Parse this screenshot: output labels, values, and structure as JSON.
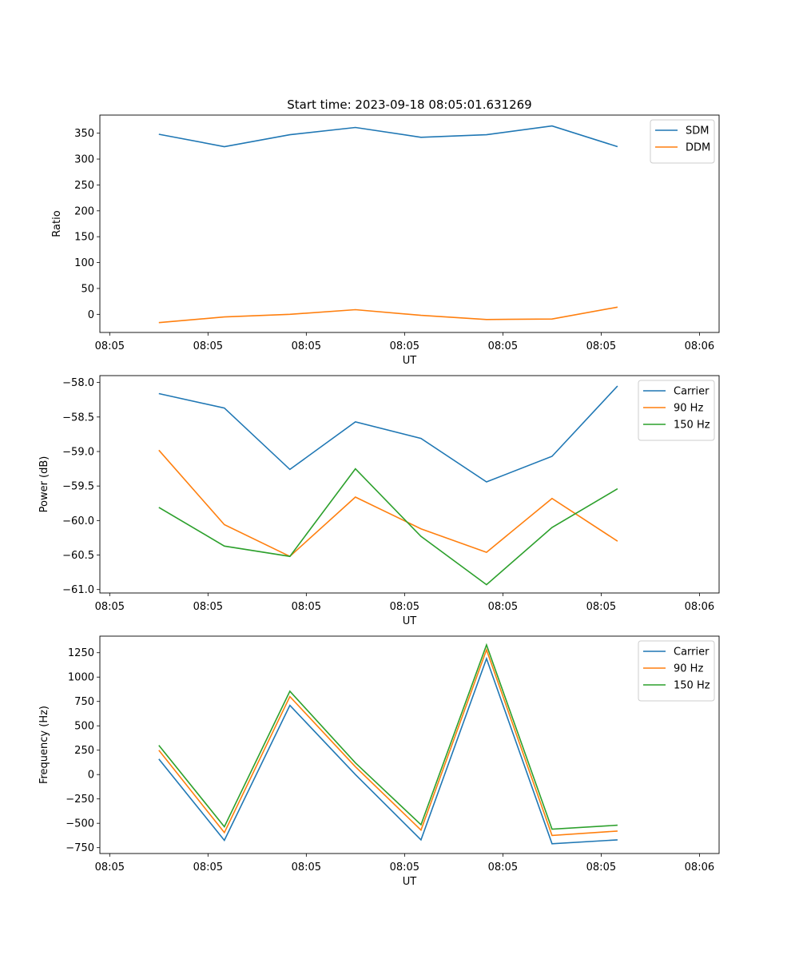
{
  "chart_data": [
    {
      "type": "line",
      "title": "Start time: 2023-09-18 08:05:01.631269",
      "xlabel": "UT",
      "ylabel": "Ratio",
      "ylim": [
        -35,
        385
      ],
      "yticks": [
        0,
        50,
        100,
        150,
        200,
        250,
        300,
        350
      ],
      "xtick_labels": [
        "08:05",
        "08:05",
        "08:05",
        "08:05",
        "08:05",
        "08:05",
        "08:06"
      ],
      "legend": "top-right",
      "grid": false,
      "series": [
        {
          "name": "SDM",
          "color": "#1f77b4",
          "values": [
            348,
            324,
            347,
            361,
            342,
            347,
            364,
            324
          ]
        },
        {
          "name": "DDM",
          "color": "#ff7f0e",
          "values": [
            -16,
            -5,
            0,
            9,
            -2,
            -10,
            -9,
            14
          ]
        }
      ]
    },
    {
      "type": "line",
      "title": "",
      "xlabel": "UT",
      "ylabel": "Power (dB)",
      "ylim": [
        -61.05,
        -57.9
      ],
      "yticks": [
        -58.0,
        -58.5,
        -59.0,
        -59.5,
        -60.0,
        -60.5,
        -61.0
      ],
      "xtick_labels": [
        "08:05",
        "08:05",
        "08:05",
        "08:05",
        "08:05",
        "08:05",
        "08:06"
      ],
      "legend": "top-right",
      "grid": false,
      "series": [
        {
          "name": "Carrier",
          "color": "#1f77b4",
          "values": [
            -58.16,
            -58.37,
            -59.26,
            -58.57,
            -58.81,
            -59.44,
            -59.07,
            -58.05
          ]
        },
        {
          "name": "90 Hz",
          "color": "#ff7f0e",
          "values": [
            -58.98,
            -60.06,
            -60.52,
            -59.66,
            -60.12,
            -60.46,
            -59.68,
            -60.3
          ]
        },
        {
          "name": "150 Hz",
          "color": "#2ca02c",
          "values": [
            -59.81,
            -60.37,
            -60.52,
            -59.25,
            -60.23,
            -60.93,
            -60.1,
            -59.54
          ]
        }
      ]
    },
    {
      "type": "line",
      "title": "",
      "xlabel": "UT",
      "ylabel": "Frequency (Hz)",
      "ylim": [
        -810,
        1420
      ],
      "yticks": [
        -750,
        -500,
        -250,
        0,
        250,
        500,
        750,
        1000,
        1250
      ],
      "xtick_labels": [
        "08:05",
        "08:05",
        "08:05",
        "08:05",
        "08:05",
        "08:05",
        "08:06"
      ],
      "legend": "top-right",
      "grid": false,
      "series": [
        {
          "name": "Carrier",
          "color": "#1f77b4",
          "values": [
            160,
            -675,
            710,
            0,
            -670,
            1190,
            -710,
            -670
          ]
        },
        {
          "name": "90 Hz",
          "color": "#ff7f0e",
          "values": [
            250,
            -595,
            800,
            80,
            -570,
            1280,
            -625,
            -580
          ]
        },
        {
          "name": "150 Hz",
          "color": "#2ca02c",
          "values": [
            300,
            -535,
            855,
            120,
            -515,
            1330,
            -560,
            -520
          ]
        }
      ]
    }
  ]
}
